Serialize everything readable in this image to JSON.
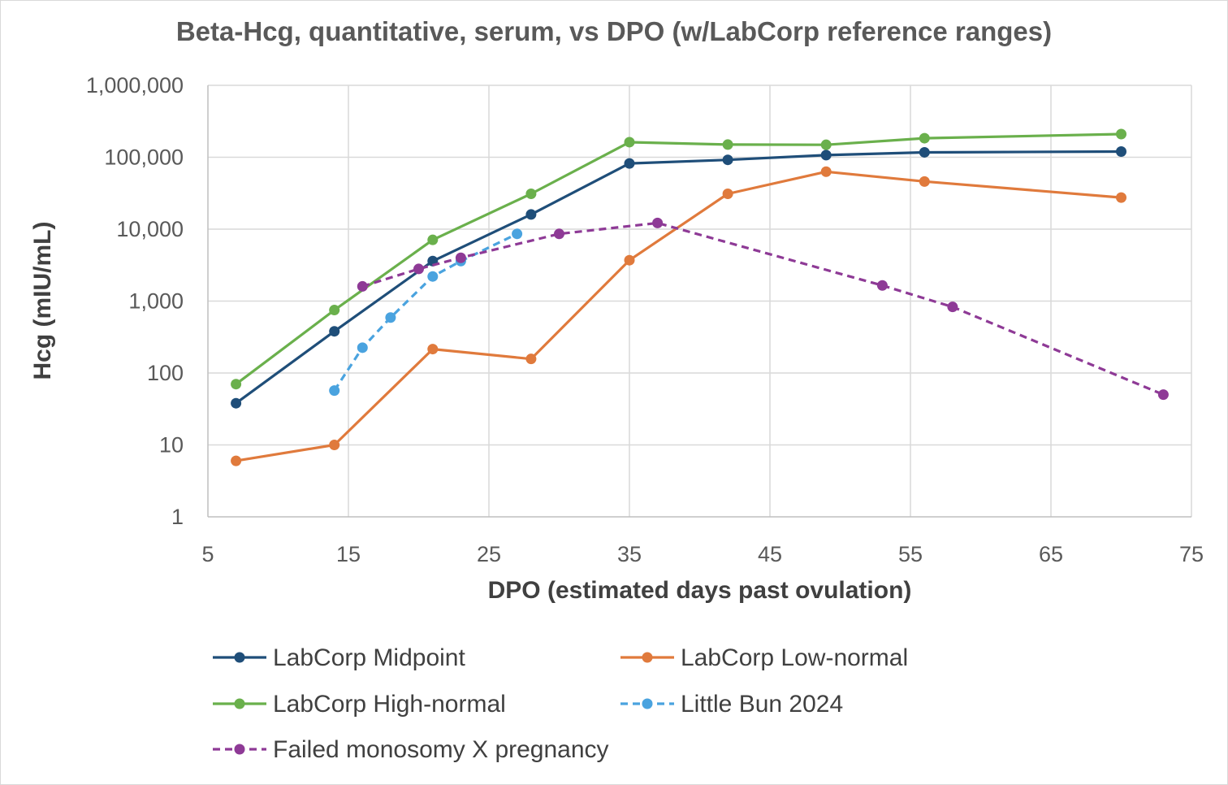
{
  "chart_data": {
    "type": "line",
    "title": "Beta-Hcg, quantitative, serum, vs DPO (w/LabCorp reference ranges)",
    "xlabel": "DPO (estimated days past ovulation)",
    "ylabel": "Hcg (mIU/mL)",
    "xlim": [
      5,
      75
    ],
    "x_ticks": [
      "5",
      "15",
      "25",
      "35",
      "45",
      "55",
      "65",
      "75"
    ],
    "x_tick_values": [
      5,
      15,
      25,
      35,
      45,
      55,
      65,
      75
    ],
    "yscale": "log",
    "ylim": [
      1,
      1000000
    ],
    "y_ticks": [
      "1",
      "10",
      "100",
      "1,000",
      "10,000",
      "100,000",
      "1,000,000"
    ],
    "y_tick_values": [
      1,
      10,
      100,
      1000,
      10000,
      100000,
      1000000
    ],
    "grid": true,
    "legend_position": "bottom",
    "series": [
      {
        "name": "LabCorp Midpoint",
        "color": "#1f4e79",
        "dashed": false,
        "x": [
          7,
          14,
          21,
          28,
          35,
          42,
          49,
          56,
          70
        ],
        "y": [
          38,
          380,
          3600,
          16000,
          82000,
          92000,
          107000,
          117000,
          120000
        ]
      },
      {
        "name": "LabCorp Low-normal",
        "color": "#e07a3c",
        "dashed": false,
        "x": [
          7,
          14,
          21,
          28,
          35,
          42,
          49,
          56,
          70
        ],
        "y": [
          6,
          10,
          215,
          157,
          3700,
          31000,
          63000,
          46000,
          27500
        ]
      },
      {
        "name": "LabCorp High-normal",
        "color": "#6ab04c",
        "dashed": false,
        "x": [
          7,
          14,
          21,
          28,
          35,
          42,
          49,
          56,
          70
        ],
        "y": [
          70,
          750,
          7100,
          31000,
          162000,
          150000,
          149000,
          184000,
          210000
        ]
      },
      {
        "name": "Little Bun 2024",
        "color": "#4aa3df",
        "dashed": true,
        "x": [
          14,
          16,
          18,
          21,
          23,
          27
        ],
        "y": [
          57,
          225,
          590,
          2200,
          3600,
          8600
        ]
      },
      {
        "name": "Failed monosomy X pregnancy",
        "color": "#8e3a96",
        "dashed": true,
        "x": [
          16,
          20,
          23,
          30,
          37,
          53,
          58,
          73
        ],
        "y": [
          1600,
          2800,
          4000,
          8600,
          12200,
          1650,
          830,
          50
        ]
      }
    ]
  }
}
